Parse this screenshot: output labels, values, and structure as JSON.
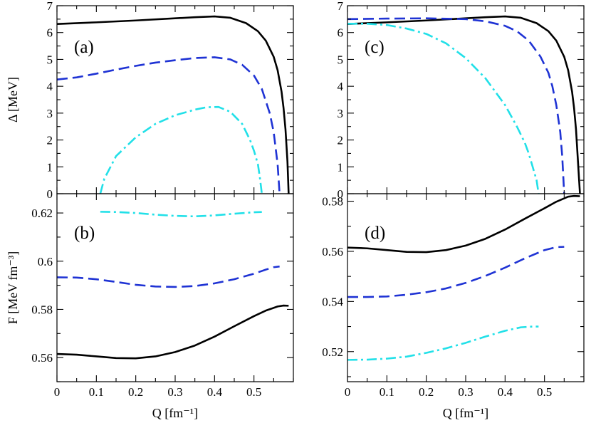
{
  "chart_data": [
    {
      "panel": "a",
      "type": "line",
      "label": "(a)",
      "xlabel": "",
      "ylabel": "Δ [MeV]",
      "xlim": [
        0,
        0.6
      ],
      "ylim": [
        0,
        7
      ],
      "xticks": [
        0,
        0.1,
        0.2,
        0.3,
        0.4,
        0.5
      ],
      "xticklabels": [],
      "yticks": [
        0,
        1,
        2,
        3,
        4,
        5,
        6,
        7
      ],
      "yticklabels": [
        "0",
        "1",
        "2",
        "3",
        "4",
        "5",
        "6",
        "7"
      ],
      "series": [
        {
          "color": "#000000",
          "dash": "solid",
          "x": [
            0,
            0.1,
            0.2,
            0.3,
            0.35,
            0.4,
            0.44,
            0.48,
            0.51,
            0.53,
            0.55,
            0.56,
            0.57,
            0.575,
            0.58,
            0.585,
            0.588
          ],
          "y": [
            6.32,
            6.38,
            6.45,
            6.53,
            6.57,
            6.6,
            6.55,
            6.35,
            6.05,
            5.7,
            5.1,
            4.6,
            3.8,
            3.2,
            2.4,
            1.2,
            0
          ]
        },
        {
          "color": "#1f33d4",
          "dash": "dashed",
          "x": [
            0,
            0.05,
            0.1,
            0.15,
            0.2,
            0.25,
            0.3,
            0.35,
            0.4,
            0.44,
            0.47,
            0.5,
            0.52,
            0.54,
            0.55,
            0.56,
            0.565
          ],
          "y": [
            4.25,
            4.33,
            4.47,
            4.62,
            4.76,
            4.88,
            4.97,
            5.05,
            5.08,
            5.0,
            4.8,
            4.4,
            3.9,
            3.0,
            2.3,
            1.1,
            0
          ]
        },
        {
          "color": "#22e0e8",
          "dash": "dashdot",
          "x": [
            0.11,
            0.12,
            0.15,
            0.2,
            0.25,
            0.3,
            0.35,
            0.38,
            0.41,
            0.44,
            0.47,
            0.49,
            0.5,
            0.51,
            0.515,
            0.52
          ],
          "y": [
            0,
            0.55,
            1.4,
            2.1,
            2.6,
            2.92,
            3.13,
            3.22,
            3.23,
            3.05,
            2.6,
            2.0,
            1.6,
            1.1,
            0.6,
            0
          ]
        }
      ]
    },
    {
      "panel": "b",
      "type": "line",
      "label": "(b)",
      "xlabel": "Q [fm⁻¹]",
      "ylabel": "F [MeV fm⁻³]",
      "xlim": [
        0,
        0.6
      ],
      "ylim": [
        0.55,
        0.628
      ],
      "xticks": [
        0,
        0.1,
        0.2,
        0.3,
        0.4,
        0.5
      ],
      "xticklabels": [
        "0",
        "0.1",
        "0.2",
        "0.3",
        "0.4",
        "0.5"
      ],
      "yticks": [
        0.56,
        0.58,
        0.6,
        0.62
      ],
      "yticklabels": [
        "0.56",
        "0.58",
        "0.6",
        "0.62"
      ],
      "series": [
        {
          "color": "#000000",
          "dash": "solid",
          "x": [
            0,
            0.05,
            0.1,
            0.15,
            0.2,
            0.25,
            0.3,
            0.35,
            0.4,
            0.45,
            0.5,
            0.53,
            0.56,
            0.575,
            0.588
          ],
          "y": [
            0.5615,
            0.5612,
            0.5605,
            0.5598,
            0.5597,
            0.5605,
            0.5623,
            0.565,
            0.5687,
            0.573,
            0.5772,
            0.5795,
            0.5812,
            0.5816,
            0.5815
          ]
        },
        {
          "color": "#1f33d4",
          "dash": "dashed",
          "x": [
            0,
            0.05,
            0.1,
            0.15,
            0.2,
            0.25,
            0.3,
            0.35,
            0.4,
            0.45,
            0.5,
            0.53,
            0.55,
            0.565
          ],
          "y": [
            0.5933,
            0.5932,
            0.5925,
            0.5914,
            0.5902,
            0.5895,
            0.5893,
            0.5897,
            0.5908,
            0.5925,
            0.5948,
            0.5965,
            0.5975,
            0.5978
          ]
        },
        {
          "color": "#22e0e8",
          "dash": "dashdot",
          "x": [
            0.11,
            0.15,
            0.2,
            0.25,
            0.3,
            0.35,
            0.4,
            0.45,
            0.5,
            0.52
          ],
          "y": [
            0.6205,
            0.6204,
            0.62,
            0.6193,
            0.6188,
            0.6186,
            0.619,
            0.6197,
            0.6203,
            0.6204
          ]
        }
      ]
    },
    {
      "panel": "c",
      "type": "line",
      "label": "(c)",
      "xlabel": "",
      "ylabel": "",
      "xlim": [
        0,
        0.6
      ],
      "ylim": [
        0,
        7
      ],
      "xticks": [
        0,
        0.1,
        0.2,
        0.3,
        0.4,
        0.5
      ],
      "xticklabels": [],
      "yticks": [
        0,
        1,
        2,
        3,
        4,
        5,
        6,
        7
      ],
      "yticklabels": [
        "0",
        "1",
        "2",
        "3",
        "4",
        "5",
        "6",
        "7"
      ],
      "series": [
        {
          "color": "#000000",
          "dash": "solid",
          "x": [
            0,
            0.1,
            0.2,
            0.3,
            0.35,
            0.4,
            0.44,
            0.48,
            0.51,
            0.53,
            0.55,
            0.56,
            0.57,
            0.575,
            0.58,
            0.585,
            0.59
          ],
          "y": [
            6.32,
            6.38,
            6.45,
            6.53,
            6.57,
            6.6,
            6.55,
            6.35,
            6.05,
            5.7,
            5.1,
            4.6,
            3.8,
            3.2,
            2.4,
            1.2,
            0
          ]
        },
        {
          "color": "#1f33d4",
          "dash": "dashed",
          "x": [
            0,
            0.1,
            0.2,
            0.3,
            0.35,
            0.4,
            0.43,
            0.46,
            0.49,
            0.51,
            0.52,
            0.53,
            0.54,
            0.545,
            0.55
          ],
          "y": [
            6.5,
            6.52,
            6.53,
            6.5,
            6.42,
            6.25,
            6.05,
            5.7,
            5.1,
            4.5,
            4.0,
            3.3,
            2.3,
            1.4,
            0
          ]
        },
        {
          "color": "#22e0e8",
          "dash": "dashdot",
          "x": [
            0,
            0.05,
            0.1,
            0.15,
            0.2,
            0.25,
            0.3,
            0.35,
            0.4,
            0.43,
            0.45,
            0.46,
            0.47,
            0.48,
            0.485
          ],
          "y": [
            6.33,
            6.33,
            6.28,
            6.15,
            5.95,
            5.6,
            5.05,
            4.3,
            3.3,
            2.5,
            1.9,
            1.5,
            1.0,
            0.5,
            0
          ]
        }
      ]
    },
    {
      "panel": "d",
      "type": "line",
      "label": "(d)",
      "xlabel": "Q [fm⁻¹]",
      "ylabel": "",
      "xlim": [
        0,
        0.6
      ],
      "ylim": [
        0.508,
        0.583
      ],
      "xticks": [
        0,
        0.1,
        0.2,
        0.3,
        0.4,
        0.5
      ],
      "xticklabels": [
        "0",
        "0.1",
        "0.2",
        "0.3",
        "0.4",
        "0.5"
      ],
      "yticks": [
        0.52,
        0.54,
        0.56,
        0.58
      ],
      "yticklabels": [
        "0.52",
        "0.54",
        "0.56",
        "0.58"
      ],
      "series": [
        {
          "color": "#000000",
          "dash": "solid",
          "x": [
            0,
            0.05,
            0.1,
            0.15,
            0.2,
            0.25,
            0.3,
            0.35,
            0.4,
            0.45,
            0.5,
            0.53,
            0.56,
            0.575,
            0.59
          ],
          "y": [
            0.5615,
            0.5612,
            0.5605,
            0.5598,
            0.5597,
            0.5605,
            0.5623,
            0.565,
            0.5687,
            0.573,
            0.5772,
            0.5798,
            0.5818,
            0.5821,
            0.582
          ]
        },
        {
          "color": "#1f33d4",
          "dash": "dashed",
          "x": [
            0,
            0.05,
            0.1,
            0.15,
            0.2,
            0.25,
            0.3,
            0.35,
            0.4,
            0.45,
            0.5,
            0.53,
            0.55
          ],
          "y": [
            0.5418,
            0.5418,
            0.542,
            0.5427,
            0.5437,
            0.5452,
            0.5474,
            0.5502,
            0.5535,
            0.5572,
            0.5605,
            0.5617,
            0.5618
          ]
        },
        {
          "color": "#22e0e8",
          "dash": "dashdot",
          "x": [
            0,
            0.05,
            0.1,
            0.15,
            0.2,
            0.25,
            0.3,
            0.35,
            0.4,
            0.44,
            0.47,
            0.485
          ],
          "y": [
            0.5167,
            0.5168,
            0.5172,
            0.518,
            0.5195,
            0.5213,
            0.5235,
            0.526,
            0.5283,
            0.5297,
            0.53,
            0.53
          ]
        }
      ]
    }
  ]
}
